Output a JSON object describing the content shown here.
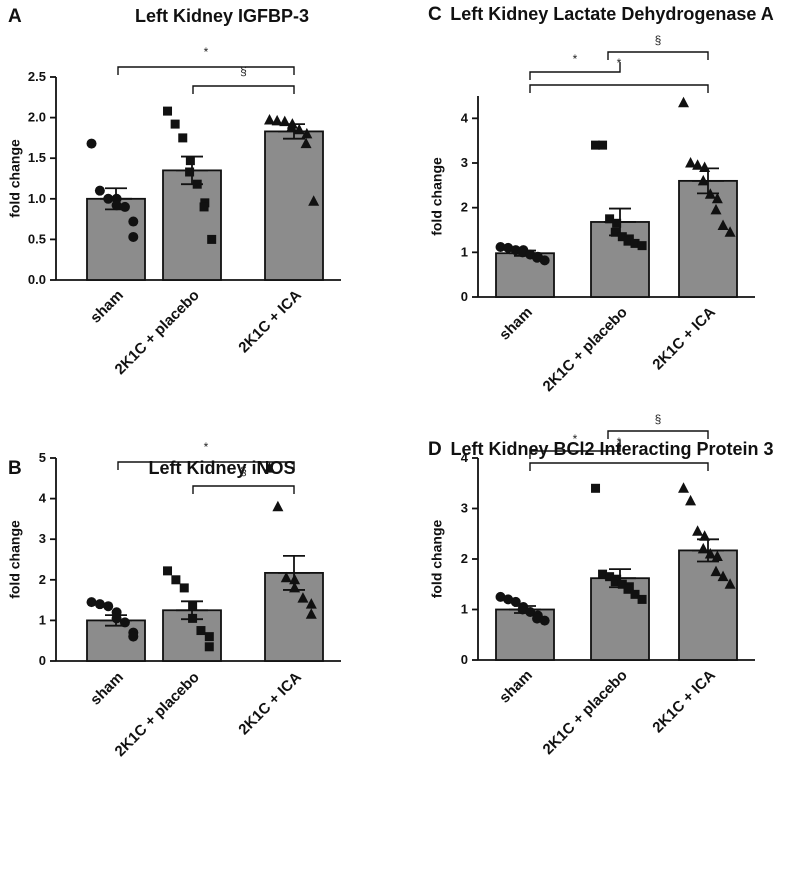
{
  "chart_data": [
    {
      "panel": "A",
      "type": "bar",
      "title": "Left Kidney IGFBP-3",
      "ylabel": "fold change",
      "ylim": [
        0,
        2.5
      ],
      "yticks": [
        "0.0",
        "0.5",
        "1.0",
        "1.5",
        "2.0",
        "2.5"
      ],
      "categories": [
        "sham",
        "2K1C + placebo",
        "2K1C + ICA"
      ],
      "values": [
        1.0,
        1.35,
        1.83
      ],
      "sem": [
        0.13,
        0.17,
        0.09
      ],
      "points": [
        [
          1.68,
          1.1,
          1.0,
          1.0,
          0.92,
          0.9,
          0.72,
          0.53
        ],
        [
          2.08,
          1.92,
          1.75,
          1.47,
          1.33,
          1.18,
          0.95,
          0.9,
          0.5
        ],
        [
          1.97,
          1.96,
          1.95,
          1.92,
          1.88,
          1.85,
          1.8,
          1.68,
          0.97
        ]
      ],
      "markers": [
        "circle",
        "square",
        "triangle"
      ],
      "significance": [
        {
          "from": 0,
          "to": 2,
          "label": "*"
        },
        {
          "from": 1,
          "to": 2,
          "label": "§"
        }
      ]
    },
    {
      "panel": "B",
      "type": "bar",
      "title": "Left Kidney iNOS",
      "ylabel": "fold change",
      "ylim": [
        0,
        5
      ],
      "yticks": [
        "0",
        "1",
        "2",
        "3",
        "4",
        "5"
      ],
      "categories": [
        "sham",
        "2K1C + placebo",
        "2K1C + ICA"
      ],
      "values": [
        1.0,
        1.25,
        2.17
      ],
      "sem": [
        0.13,
        0.22,
        0.42
      ],
      "points": [
        [
          1.45,
          1.4,
          1.35,
          1.2,
          1.05,
          0.95,
          0.7,
          0.6
        ],
        [
          2.22,
          2.0,
          1.8,
          1.35,
          1.05,
          0.75,
          0.6,
          0.35
        ],
        [
          4.75,
          3.8,
          2.05,
          2.0,
          1.8,
          1.55,
          1.4,
          1.15
        ]
      ],
      "markers": [
        "circle",
        "square",
        "triangle"
      ],
      "significance": [
        {
          "from": 0,
          "to": 2,
          "label": "*"
        },
        {
          "from": 1,
          "to": 2,
          "label": "§"
        }
      ]
    },
    {
      "panel": "C",
      "type": "bar",
      "title": "Left Kidney Lactate Dehydrogenase A",
      "ylabel": "fold change",
      "ylim": [
        0,
        4.5
      ],
      "yticks": [
        "0",
        "1",
        "2",
        "3",
        "4"
      ],
      "categories": [
        "sham",
        "2K1C + placebo",
        "2K1C + ICA"
      ],
      "values": [
        0.98,
        1.68,
        2.6
      ],
      "sem": [
        0.06,
        0.3,
        0.28
      ],
      "points": [
        [
          1.12,
          1.1,
          1.05,
          1.05,
          1.0,
          0.95,
          0.9,
          0.88,
          0.82
        ],
        [
          3.4,
          3.4,
          1.75,
          1.65,
          1.45,
          1.35,
          1.3,
          1.25,
          1.2,
          1.15
        ],
        [
          4.35,
          3.0,
          2.95,
          2.9,
          2.6,
          2.3,
          2.2,
          1.95,
          1.6,
          1.45
        ]
      ],
      "markers": [
        "circle",
        "square",
        "triangle"
      ],
      "significance": [
        {
          "from": 0,
          "to": 1,
          "label": "*"
        },
        {
          "from": 0,
          "to": 2,
          "label": "*"
        },
        {
          "from": 1,
          "to": 2,
          "label": "§"
        }
      ]
    },
    {
      "panel": "D",
      "type": "bar",
      "title": "Left Kidney BCl2 Interacting Protein 3",
      "ylabel": "fold change",
      "ylim": [
        0,
        4
      ],
      "yticks": [
        "0",
        "1",
        "2",
        "3",
        "4"
      ],
      "categories": [
        "sham",
        "2K1C + placebo",
        "2K1C + ICA"
      ],
      "values": [
        1.0,
        1.62,
        2.17
      ],
      "sem": [
        0.07,
        0.18,
        0.22
      ],
      "points": [
        [
          1.25,
          1.2,
          1.15,
          1.05,
          1.0,
          0.95,
          0.88,
          0.82,
          0.78
        ],
        [
          3.4,
          1.7,
          1.65,
          1.6,
          1.55,
          1.5,
          1.45,
          1.4,
          1.3,
          1.2
        ],
        [
          3.4,
          3.15,
          2.55,
          2.45,
          2.2,
          2.1,
          2.05,
          1.75,
          1.65,
          1.5
        ]
      ],
      "markers": [
        "circle",
        "square",
        "triangle"
      ],
      "significance": [
        {
          "from": 0,
          "to": 1,
          "label": "*"
        },
        {
          "from": 0,
          "to": 2,
          "label": "*"
        },
        {
          "from": 1,
          "to": 2,
          "label": "§"
        }
      ]
    }
  ]
}
